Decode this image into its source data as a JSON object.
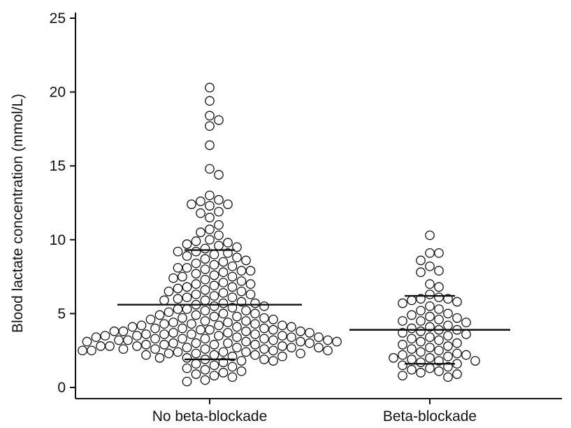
{
  "chart_data": {
    "type": "scatter",
    "title": "",
    "xlabel": "",
    "ylabel": "Blood lactate concentration (mmol/L)",
    "ylim": [
      0,
      25
    ],
    "yticks": [
      "0",
      "5",
      "10",
      "15",
      "20",
      "25"
    ],
    "categories": [
      "No beta-blockade",
      "Beta-blockade"
    ],
    "grid": false,
    "marker": "open-circle",
    "series": [
      {
        "category": "No beta-blockade",
        "mean": 5.6,
        "sd_upper": 9.3,
        "sd_lower": 1.9,
        "values": [
          20.3,
          19.4,
          18.4,
          18.1,
          17.7,
          16.4,
          14.8,
          14.4,
          13.0,
          12.7,
          12.6,
          12.4,
          12.4,
          12.3,
          11.9,
          11.8,
          11.5,
          11.0,
          10.7,
          10.5,
          10.3,
          10.0,
          9.9,
          9.8,
          9.7,
          9.6,
          9.5,
          9.4,
          9.2,
          9.2,
          9.1,
          9.0,
          8.9,
          8.8,
          8.7,
          8.6,
          8.5,
          8.4,
          8.3,
          8.2,
          8.1,
          8.1,
          8.0,
          7.9,
          7.9,
          7.8,
          7.7,
          7.6,
          7.5,
          7.5,
          7.4,
          7.3,
          7.2,
          7.1,
          7.0,
          7.0,
          6.9,
          6.8,
          6.8,
          6.7,
          6.6,
          6.5,
          6.5,
          6.4,
          6.3,
          6.3,
          6.2,
          6.1,
          6.1,
          6.0,
          5.9,
          5.9,
          5.8,
          5.7,
          5.7,
          5.6,
          5.5,
          5.5,
          5.4,
          5.3,
          5.3,
          5.2,
          5.2,
          5.1,
          5.0,
          5.0,
          4.9,
          4.9,
          4.8,
          4.8,
          4.7,
          4.7,
          4.6,
          4.6,
          4.5,
          4.5,
          4.4,
          4.4,
          4.3,
          4.3,
          4.3,
          4.2,
          4.2,
          4.2,
          4.1,
          4.1,
          4.1,
          4.0,
          4.0,
          4.0,
          3.9,
          3.9,
          3.9,
          3.8,
          3.8,
          3.8,
          3.8,
          3.7,
          3.7,
          3.7,
          3.6,
          3.6,
          3.6,
          3.6,
          3.5,
          3.5,
          3.5,
          3.5,
          3.4,
          3.4,
          3.4,
          3.4,
          3.3,
          3.3,
          3.3,
          3.3,
          3.2,
          3.2,
          3.2,
          3.2,
          3.1,
          3.1,
          3.1,
          3.1,
          3.0,
          3.0,
          3.0,
          3.0,
          2.9,
          2.9,
          2.9,
          2.9,
          2.8,
          2.8,
          2.8,
          2.8,
          2.7,
          2.7,
          2.7,
          2.7,
          2.6,
          2.6,
          2.6,
          2.6,
          2.5,
          2.5,
          2.5,
          2.5,
          2.4,
          2.4,
          2.4,
          2.3,
          2.3,
          2.3,
          2.2,
          2.2,
          2.2,
          2.1,
          2.1,
          2.0,
          2.0,
          1.9,
          1.9,
          1.8,
          1.8,
          1.7,
          1.6,
          1.5,
          1.4,
          1.3,
          1.2,
          1.1,
          1.0,
          0.9,
          0.8,
          0.7,
          0.5,
          0.4
        ]
      },
      {
        "category": "Beta-blockade",
        "mean": 3.9,
        "sd_upper": 6.2,
        "sd_lower": 1.6,
        "values": [
          10.3,
          9.1,
          9.1,
          8.6,
          8.2,
          7.9,
          7.8,
          7.0,
          6.8,
          6.3,
          6.1,
          6.0,
          6.0,
          5.9,
          5.8,
          5.7,
          5.5,
          5.3,
          5.2,
          5.0,
          4.9,
          4.8,
          4.7,
          4.6,
          4.5,
          4.5,
          4.4,
          4.2,
          4.1,
          4.0,
          3.9,
          3.9,
          3.8,
          3.7,
          3.6,
          3.5,
          3.4,
          3.3,
          3.2,
          3.1,
          3.0,
          2.9,
          2.8,
          2.7,
          2.6,
          2.5,
          2.4,
          2.3,
          2.2,
          2.2,
          2.1,
          2.0,
          2.0,
          1.9,
          1.8,
          1.8,
          1.7,
          1.6,
          1.5,
          1.4,
          1.3,
          1.2,
          1.1,
          1.0,
          0.9,
          0.8,
          0.7
        ]
      }
    ]
  }
}
